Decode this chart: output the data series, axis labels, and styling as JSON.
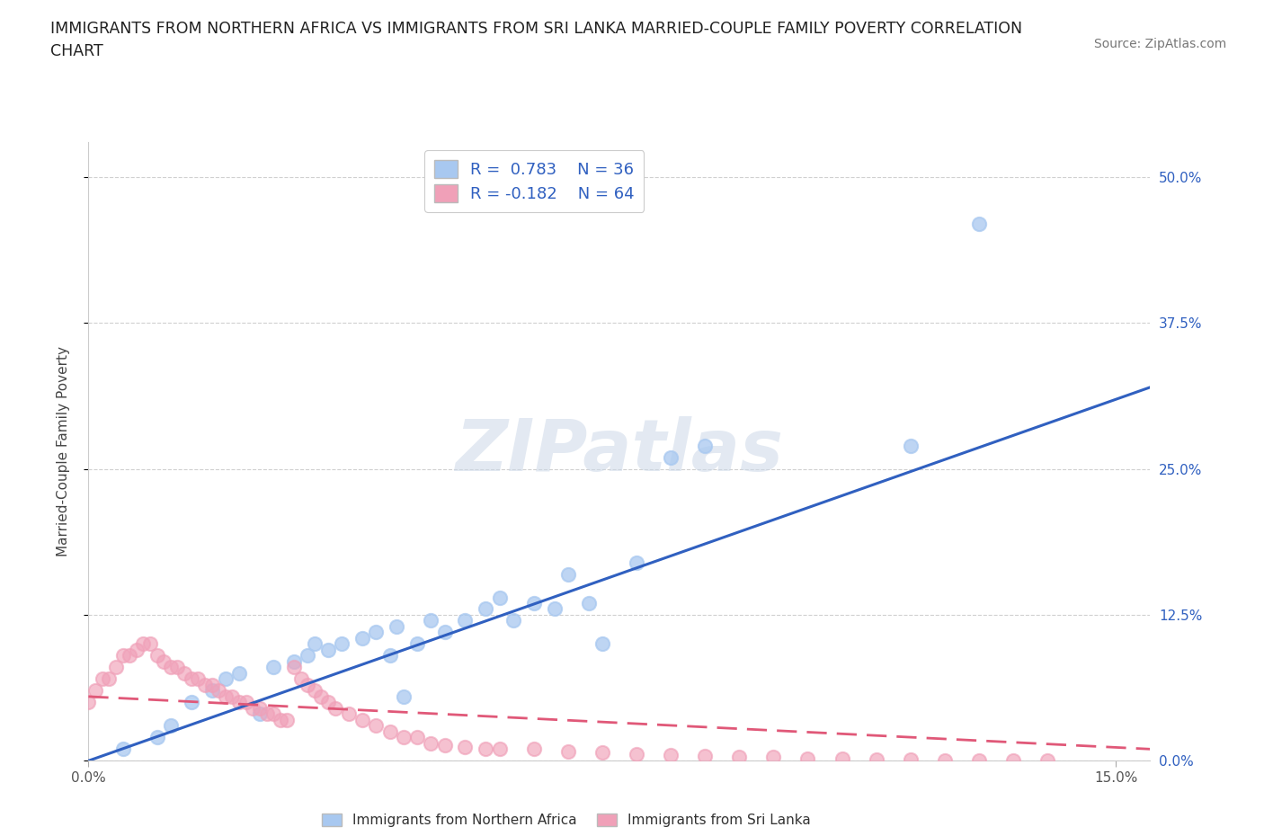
{
  "title_line1": "IMMIGRANTS FROM NORTHERN AFRICA VS IMMIGRANTS FROM SRI LANKA MARRIED-COUPLE FAMILY POVERTY CORRELATION",
  "title_line2": "CHART",
  "source": "Source: ZipAtlas.com",
  "ylabel": "Married-Couple Family Poverty",
  "xlim": [
    0.0,
    0.155
  ],
  "ylim": [
    0.0,
    0.53
  ],
  "yticks": [
    0.0,
    0.125,
    0.25,
    0.375,
    0.5
  ],
  "ytick_labels": [
    "0.0%",
    "12.5%",
    "25.0%",
    "37.5%",
    "50.0%"
  ],
  "xticks": [
    0.0,
    0.15
  ],
  "xtick_labels": [
    "0.0%",
    "15.0%"
  ],
  "blue_R": 0.783,
  "blue_N": 36,
  "pink_R": -0.182,
  "pink_N": 64,
  "blue_color": "#a8c8f0",
  "pink_color": "#f0a0b8",
  "blue_line_color": "#3060c0",
  "pink_line_color": "#e05878",
  "axis_label_color": "#3060c0",
  "watermark_text": "ZIPatlas",
  "legend_label_color": "#3060c0",
  "blue_scatter_x": [
    0.005,
    0.01,
    0.012,
    0.015,
    0.018,
    0.02,
    0.022,
    0.025,
    0.027,
    0.03,
    0.032,
    0.033,
    0.035,
    0.037,
    0.04,
    0.042,
    0.044,
    0.045,
    0.046,
    0.048,
    0.05,
    0.052,
    0.055,
    0.058,
    0.06,
    0.062,
    0.065,
    0.068,
    0.07,
    0.073,
    0.075,
    0.08,
    0.13,
    0.09,
    0.085,
    0.12
  ],
  "blue_scatter_y": [
    0.01,
    0.02,
    0.03,
    0.05,
    0.06,
    0.07,
    0.075,
    0.04,
    0.08,
    0.085,
    0.09,
    0.1,
    0.095,
    0.1,
    0.105,
    0.11,
    0.09,
    0.115,
    0.055,
    0.1,
    0.12,
    0.11,
    0.12,
    0.13,
    0.14,
    0.12,
    0.135,
    0.13,
    0.16,
    0.135,
    0.1,
    0.17,
    0.46,
    0.27,
    0.26,
    0.27
  ],
  "pink_scatter_x": [
    0.0,
    0.001,
    0.002,
    0.003,
    0.004,
    0.005,
    0.006,
    0.007,
    0.008,
    0.009,
    0.01,
    0.011,
    0.012,
    0.013,
    0.014,
    0.015,
    0.016,
    0.017,
    0.018,
    0.019,
    0.02,
    0.021,
    0.022,
    0.023,
    0.024,
    0.025,
    0.026,
    0.027,
    0.028,
    0.029,
    0.03,
    0.031,
    0.032,
    0.033,
    0.034,
    0.035,
    0.036,
    0.038,
    0.04,
    0.042,
    0.044,
    0.046,
    0.048,
    0.05,
    0.052,
    0.055,
    0.058,
    0.06,
    0.065,
    0.07,
    0.075,
    0.08,
    0.085,
    0.09,
    0.095,
    0.1,
    0.105,
    0.11,
    0.115,
    0.12,
    0.125,
    0.13,
    0.135,
    0.14
  ],
  "pink_scatter_y": [
    0.05,
    0.06,
    0.07,
    0.07,
    0.08,
    0.09,
    0.09,
    0.095,
    0.1,
    0.1,
    0.09,
    0.085,
    0.08,
    0.08,
    0.075,
    0.07,
    0.07,
    0.065,
    0.065,
    0.06,
    0.055,
    0.055,
    0.05,
    0.05,
    0.045,
    0.045,
    0.04,
    0.04,
    0.035,
    0.035,
    0.08,
    0.07,
    0.065,
    0.06,
    0.055,
    0.05,
    0.045,
    0.04,
    0.035,
    0.03,
    0.025,
    0.02,
    0.02,
    0.015,
    0.013,
    0.012,
    0.01,
    0.01,
    0.01,
    0.008,
    0.007,
    0.006,
    0.005,
    0.004,
    0.003,
    0.003,
    0.002,
    0.002,
    0.001,
    0.001,
    0.0,
    0.0,
    0.0,
    0.0
  ],
  "blue_line_x0": 0.0,
  "blue_line_y0": 0.0,
  "blue_line_x1": 0.155,
  "blue_line_y1": 0.32,
  "pink_line_x0": 0.0,
  "pink_line_y0": 0.055,
  "pink_line_x1": 0.155,
  "pink_line_y1": 0.01
}
